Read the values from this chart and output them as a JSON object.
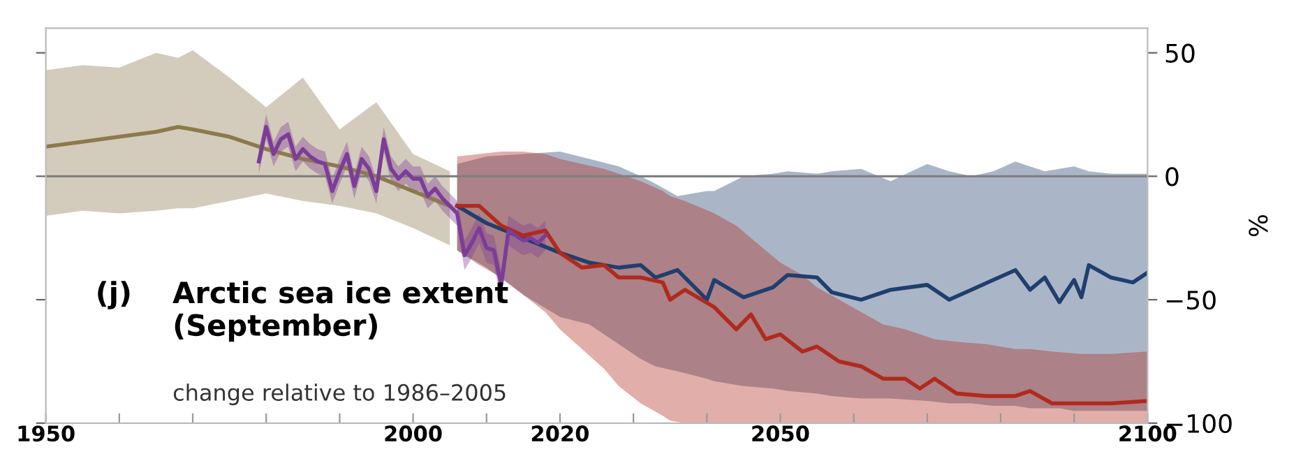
{
  "chart_data": {
    "type": "line",
    "title": "Arctic sea ice extent\n(September)",
    "subtitle": "change relative to 1986–2005",
    "ylabel": "%",
    "annotations": [
      "(j)"
    ],
    "xlim": [
      1950,
      2100
    ],
    "xticks": [
      1950,
      {
        "value": 1960,
        "label": null
      },
      {
        "value": 1970,
        "label": null
      },
      {
        "value": 1980,
        "label": null
      },
      {
        "value": 1990,
        "label": null
      },
      2000,
      {
        "value": 2010,
        "label": null
      },
      2020,
      {
        "value": 2030,
        "label": null
      },
      {
        "value": 2040,
        "label": null
      },
      2050,
      {
        "value": 2060,
        "label": null
      },
      {
        "value": 2070,
        "label": null
      },
      {
        "value": 2080,
        "label": null
      },
      {
        "value": 2090,
        "label": null
      },
      2100
    ],
    "ylim": [
      -100,
      60
    ],
    "yticks": [
      50,
      0,
      {
        "value": -50,
        "label": "−50"
      },
      {
        "value": -100,
        "label": "−100"
      }
    ],
    "ref_lines": [
      {
        "axis": "y",
        "value": 0,
        "color": "#808080"
      }
    ],
    "grid": false,
    "legend": false,
    "line_style": "solid",
    "marker": "none",
    "series": [
      {
        "color": "#8c7a4e",
        "x": [
          1950,
          1955,
          1960,
          1965,
          1968,
          1970,
          1975,
          1980,
          1985,
          1990,
          1995,
          2000,
          2005
        ],
        "values": [
          12,
          14,
          16,
          18,
          20,
          19,
          16,
          11,
          7,
          4,
          0,
          -6,
          -12
        ],
        "upper": [
          43,
          45,
          44,
          50,
          48,
          51,
          40,
          28,
          40,
          19,
          30,
          9,
          2
        ],
        "lower": [
          -16,
          -14,
          -15,
          -14,
          -13,
          -13,
          -10,
          -7,
          -10,
          -12,
          -15,
          -21,
          -28
        ]
      },
      {
        "color": "#1f3f6e",
        "x": [
          2006,
          2010,
          2015,
          2020,
          2024,
          2028,
          2031,
          2033,
          2036,
          2040,
          2041,
          2045,
          2049,
          2051,
          2055,
          2057,
          2061,
          2065,
          2070,
          2073,
          2076,
          2079,
          2082,
          2084,
          2086,
          2088,
          2090,
          2091,
          2092,
          2095,
          2098,
          2100
        ],
        "values": [
          -12,
          -19,
          -25,
          -31,
          -35,
          -37,
          -36,
          -41,
          -38,
          -50,
          -42,
          -49,
          -45,
          -40,
          -41,
          -47,
          -50,
          -46,
          -44,
          -50,
          -46,
          -42,
          -38,
          -46,
          -41,
          -51,
          -42,
          -49,
          -36,
          -41,
          -43,
          -39
        ],
        "upper": [
          5,
          8,
          9,
          10,
          7,
          4,
          0,
          -3,
          -8,
          -6,
          -6,
          0,
          1,
          2,
          1,
          2,
          3,
          -2,
          5,
          2,
          0,
          2,
          6,
          4,
          2,
          3,
          4,
          3,
          2,
          1,
          1,
          1
        ],
        "lower": [
          -30,
          -37,
          -48,
          -57,
          -60,
          -68,
          -74,
          -77,
          -79,
          -82,
          -83,
          -85,
          -86,
          -87,
          -88,
          -89,
          -90,
          -90,
          -91,
          -92,
          -92,
          -93,
          -93,
          -94,
          -94,
          -94,
          -95,
          -95,
          -95,
          -95,
          -95,
          -95
        ]
      },
      {
        "color": "#b02a1e",
        "x": [
          2006,
          2009,
          2012,
          2015,
          2018,
          2020,
          2023,
          2026,
          2028,
          2031,
          2034,
          2035,
          2037,
          2041,
          2044,
          2046,
          2048,
          2050,
          2053,
          2055,
          2058,
          2061,
          2064,
          2067,
          2069,
          2071,
          2074,
          2078,
          2082,
          2084,
          2087,
          2091,
          2095,
          2100
        ],
        "values": [
          -12,
          -12,
          -20,
          -24,
          -22,
          -31,
          -37,
          -36,
          -41,
          -41,
          -43,
          -50,
          -46,
          -53,
          -62,
          -56,
          -66,
          -64,
          -71,
          -69,
          -75,
          -77,
          -82,
          -82,
          -86,
          -82,
          -88,
          -89,
          -89,
          -87,
          -92,
          -92,
          -92,
          -91
        ],
        "upper": [
          8,
          9,
          10,
          10,
          9,
          7,
          5,
          3,
          1,
          -2,
          -6,
          -8,
          -10,
          -15,
          -20,
          -25,
          -30,
          -35,
          -40,
          -45,
          -50,
          -55,
          -60,
          -62,
          -64,
          -66,
          -67,
          -68,
          -70,
          -70,
          -71,
          -72,
          -72,
          -71
        ],
        "lower": [
          -30,
          -36,
          -41,
          -48,
          -55,
          -62,
          -70,
          -78,
          -85,
          -92,
          -97,
          -99,
          -100,
          -100,
          -100,
          -100,
          -100,
          -100,
          -100,
          -100,
          -100,
          -100,
          -100,
          -100,
          -100,
          -100,
          -100,
          -100,
          -100,
          -100,
          -100,
          -100,
          -100,
          -100
        ]
      },
      {
        "color": "#7d3c98",
        "x": [
          1979,
          1980,
          1981,
          1982,
          1983,
          1984,
          1985,
          1986,
          1987,
          1988,
          1989,
          1990,
          1991,
          1992,
          1993,
          1994,
          1995,
          1996,
          1997,
          1998,
          1999,
          2000,
          2001,
          2002,
          2003,
          2004,
          2005,
          2006,
          2007,
          2008,
          2009,
          2010,
          2011,
          2012,
          2013,
          2014,
          2015,
          2016,
          2017,
          2018
        ],
        "values": [
          6,
          20,
          9,
          15,
          17,
          7,
          11,
          8,
          6,
          5,
          -6,
          2,
          9,
          -4,
          7,
          3,
          -6,
          15,
          3,
          -1,
          2,
          -1,
          -1,
          -8,
          -5,
          -9,
          -12,
          -15,
          -32,
          -27,
          -21,
          -29,
          -30,
          -44,
          -22,
          -24,
          -26,
          -25,
          -27,
          -24
        ],
        "upper": [
          11,
          25,
          14,
          20,
          22,
          12,
          16,
          13,
          11,
          10,
          -1,
          7,
          14,
          1,
          12,
          8,
          -1,
          20,
          8,
          4,
          7,
          4,
          4,
          -3,
          0,
          -4,
          -7,
          -10,
          -26,
          -21,
          -15,
          -23,
          -24,
          -38,
          -16,
          -18,
          -20,
          -19,
          -21,
          -18
        ],
        "lower": [
          1,
          15,
          4,
          10,
          12,
          2,
          6,
          3,
          1,
          0,
          -11,
          -3,
          4,
          -9,
          2,
          -2,
          -11,
          10,
          -2,
          -6,
          -3,
          -6,
          -6,
          -13,
          -10,
          -14,
          -17,
          -20,
          -38,
          -33,
          -27,
          -35,
          -36,
          -50,
          -28,
          -30,
          -32,
          -31,
          -33,
          -30
        ]
      }
    ]
  }
}
